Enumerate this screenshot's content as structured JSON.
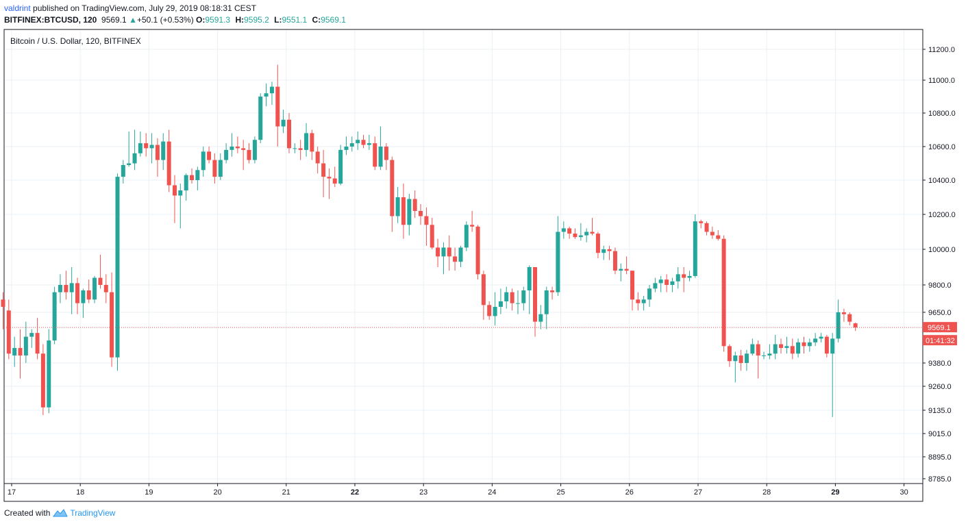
{
  "header": {
    "author": "valdrint",
    "published_text": "published on TradingView.com, July 29, 2019 08:18:31 CEST",
    "symbol": "BITFINEX:BTCUSD, 120",
    "last": "9569.1",
    "change": "+50.1 (+0.53%)",
    "open_label": "O:",
    "open_value": "9591.3",
    "high_label": "H:",
    "high_value": "9595.2",
    "low_label": "L:",
    "low_value": "9551.1",
    "close_label": "C:",
    "close_value": "9569.1"
  },
  "footer": {
    "created_with": "Created with",
    "brand": "TradingView"
  },
  "colors": {
    "up": "#26a69a",
    "down": "#ef5350",
    "grid": "#e9f1f5",
    "price_line": "#ef5350",
    "axis": "#131722"
  },
  "chart_data": {
    "type": "candlestick",
    "title": "Bitcoin / U.S. Dollar, 120, BITFINEX",
    "ylim": [
      8760,
      11320
    ],
    "y_ticks": [
      "11200.0",
      "11000.0",
      "10800.0",
      "10600.0",
      "10400.0",
      "10200.0",
      "10000.0",
      "9800.0",
      "9650.0",
      "9380.0",
      "9260.0",
      "9135.0",
      "9015.0",
      "8895.0",
      "8785.0"
    ],
    "x_ticks": [
      "17",
      "18",
      "19",
      "20",
      "21",
      "22",
      "23",
      "24",
      "25",
      "26",
      "27",
      "28",
      "29",
      "30"
    ],
    "x_ticks_bold": [
      "22",
      "29"
    ],
    "current_price": "9569.1",
    "countdown": "01:41:32",
    "series": [
      {
        "x": 16.875,
        "o": 9720,
        "h": 9760,
        "l": 9560,
        "c": 9680
      },
      {
        "x": 16.958,
        "o": 9660,
        "h": 9720,
        "l": 9400,
        "c": 9430
      },
      {
        "x": 17.042,
        "o": 9420,
        "h": 9520,
        "l": 9360,
        "c": 9460
      },
      {
        "x": 17.125,
        "o": 9460,
        "h": 9560,
        "l": 9300,
        "c": 9420
      },
      {
        "x": 17.208,
        "o": 9420,
        "h": 9600,
        "l": 9380,
        "c": 9520
      },
      {
        "x": 17.292,
        "o": 9520,
        "h": 9560,
        "l": 9460,
        "c": 9540
      },
      {
        "x": 17.375,
        "o": 9540,
        "h": 9620,
        "l": 9400,
        "c": 9430
      },
      {
        "x": 17.458,
        "o": 9430,
        "h": 9480,
        "l": 9110,
        "c": 9150
      },
      {
        "x": 17.542,
        "o": 9150,
        "h": 9560,
        "l": 9120,
        "c": 9500
      },
      {
        "x": 17.625,
        "o": 9500,
        "h": 9790,
        "l": 9480,
        "c": 9760
      },
      {
        "x": 17.708,
        "o": 9760,
        "h": 9860,
        "l": 9700,
        "c": 9800
      },
      {
        "x": 17.792,
        "o": 9800,
        "h": 9880,
        "l": 9720,
        "c": 9760
      },
      {
        "x": 17.875,
        "o": 9760,
        "h": 9900,
        "l": 9640,
        "c": 9810
      },
      {
        "x": 17.958,
        "o": 9810,
        "h": 9840,
        "l": 9640,
        "c": 9700
      },
      {
        "x": 18.042,
        "o": 9700,
        "h": 9780,
        "l": 9620,
        "c": 9770
      },
      {
        "x": 18.125,
        "o": 9770,
        "h": 9830,
        "l": 9700,
        "c": 9720
      },
      {
        "x": 18.208,
        "o": 9720,
        "h": 9850,
        "l": 9700,
        "c": 9840
      },
      {
        "x": 18.292,
        "o": 9840,
        "h": 9970,
        "l": 9780,
        "c": 9800
      },
      {
        "x": 18.375,
        "o": 9800,
        "h": 9860,
        "l": 9700,
        "c": 9760
      },
      {
        "x": 18.458,
        "o": 9760,
        "h": 9870,
        "l": 9360,
        "c": 9410
      },
      {
        "x": 18.542,
        "o": 9410,
        "h": 10440,
        "l": 9340,
        "c": 10420
      },
      {
        "x": 18.625,
        "o": 10420,
        "h": 10520,
        "l": 10380,
        "c": 10490
      },
      {
        "x": 18.708,
        "o": 10490,
        "h": 10690,
        "l": 10480,
        "c": 10500
      },
      {
        "x": 18.792,
        "o": 10500,
        "h": 10700,
        "l": 10460,
        "c": 10560
      },
      {
        "x": 18.875,
        "o": 10560,
        "h": 10690,
        "l": 10540,
        "c": 10620
      },
      {
        "x": 18.958,
        "o": 10620,
        "h": 10680,
        "l": 10540,
        "c": 10590
      },
      {
        "x": 19.042,
        "o": 10590,
        "h": 10680,
        "l": 10500,
        "c": 10610
      },
      {
        "x": 19.125,
        "o": 10610,
        "h": 10650,
        "l": 10420,
        "c": 10520
      },
      {
        "x": 19.208,
        "o": 10520,
        "h": 10680,
        "l": 10460,
        "c": 10630
      },
      {
        "x": 19.292,
        "o": 10630,
        "h": 10700,
        "l": 10330,
        "c": 10370
      },
      {
        "x": 19.375,
        "o": 10370,
        "h": 10430,
        "l": 10150,
        "c": 10310
      },
      {
        "x": 19.458,
        "o": 10310,
        "h": 10380,
        "l": 10120,
        "c": 10340
      },
      {
        "x": 19.542,
        "o": 10340,
        "h": 10440,
        "l": 10280,
        "c": 10430
      },
      {
        "x": 19.625,
        "o": 10430,
        "h": 10470,
        "l": 10380,
        "c": 10400
      },
      {
        "x": 19.708,
        "o": 10400,
        "h": 10480,
        "l": 10340,
        "c": 10460
      },
      {
        "x": 19.792,
        "o": 10460,
        "h": 10600,
        "l": 10420,
        "c": 10570
      },
      {
        "x": 19.875,
        "o": 10570,
        "h": 10600,
        "l": 10500,
        "c": 10520
      },
      {
        "x": 19.958,
        "o": 10520,
        "h": 10560,
        "l": 10380,
        "c": 10420
      },
      {
        "x": 20.042,
        "o": 10420,
        "h": 10560,
        "l": 10400,
        "c": 10520
      },
      {
        "x": 20.125,
        "o": 10520,
        "h": 10620,
        "l": 10500,
        "c": 10580
      },
      {
        "x": 20.208,
        "o": 10580,
        "h": 10680,
        "l": 10540,
        "c": 10600
      },
      {
        "x": 20.292,
        "o": 10600,
        "h": 10660,
        "l": 10560,
        "c": 10590
      },
      {
        "x": 20.375,
        "o": 10590,
        "h": 10640,
        "l": 10460,
        "c": 10580
      },
      {
        "x": 20.458,
        "o": 10580,
        "h": 10620,
        "l": 10500,
        "c": 10520
      },
      {
        "x": 20.542,
        "o": 10520,
        "h": 10660,
        "l": 10500,
        "c": 10640
      },
      {
        "x": 20.625,
        "o": 10640,
        "h": 10920,
        "l": 10620,
        "c": 10900
      },
      {
        "x": 20.708,
        "o": 10900,
        "h": 10980,
        "l": 10840,
        "c": 10920
      },
      {
        "x": 20.792,
        "o": 10920,
        "h": 10990,
        "l": 10850,
        "c": 10960
      },
      {
        "x": 20.875,
        "o": 10960,
        "h": 11100,
        "l": 10600,
        "c": 10720
      },
      {
        "x": 20.958,
        "o": 10720,
        "h": 10820,
        "l": 10680,
        "c": 10760
      },
      {
        "x": 21.042,
        "o": 10760,
        "h": 10800,
        "l": 10560,
        "c": 10590
      },
      {
        "x": 21.125,
        "o": 10590,
        "h": 10620,
        "l": 10560,
        "c": 10590
      },
      {
        "x": 21.208,
        "o": 10590,
        "h": 10640,
        "l": 10520,
        "c": 10580
      },
      {
        "x": 21.292,
        "o": 10580,
        "h": 10740,
        "l": 10540,
        "c": 10680
      },
      {
        "x": 21.375,
        "o": 10680,
        "h": 10700,
        "l": 10520,
        "c": 10570
      },
      {
        "x": 21.458,
        "o": 10570,
        "h": 10600,
        "l": 10440,
        "c": 10500
      },
      {
        "x": 21.542,
        "o": 10500,
        "h": 10580,
        "l": 10300,
        "c": 10420
      },
      {
        "x": 21.625,
        "o": 10420,
        "h": 10470,
        "l": 10290,
        "c": 10410
      },
      {
        "x": 21.708,
        "o": 10410,
        "h": 10480,
        "l": 10360,
        "c": 10380
      },
      {
        "x": 21.792,
        "o": 10380,
        "h": 10610,
        "l": 10370,
        "c": 10580
      },
      {
        "x": 21.875,
        "o": 10580,
        "h": 10660,
        "l": 10550,
        "c": 10600
      },
      {
        "x": 21.958,
        "o": 10600,
        "h": 10660,
        "l": 10570,
        "c": 10620
      },
      {
        "x": 22.042,
        "o": 10620,
        "h": 10690,
        "l": 10580,
        "c": 10640
      },
      {
        "x": 22.125,
        "o": 10640,
        "h": 10670,
        "l": 10590,
        "c": 10610
      },
      {
        "x": 22.208,
        "o": 10610,
        "h": 10670,
        "l": 10580,
        "c": 10620
      },
      {
        "x": 22.292,
        "o": 10620,
        "h": 10660,
        "l": 10460,
        "c": 10480
      },
      {
        "x": 22.375,
        "o": 10480,
        "h": 10720,
        "l": 10460,
        "c": 10600
      },
      {
        "x": 22.458,
        "o": 10600,
        "h": 10620,
        "l": 10460,
        "c": 10520
      },
      {
        "x": 22.542,
        "o": 10520,
        "h": 10540,
        "l": 10100,
        "c": 10190
      },
      {
        "x": 22.625,
        "o": 10190,
        "h": 10360,
        "l": 10150,
        "c": 10300
      },
      {
        "x": 22.708,
        "o": 10300,
        "h": 10380,
        "l": 10060,
        "c": 10140
      },
      {
        "x": 22.792,
        "o": 10140,
        "h": 10320,
        "l": 10080,
        "c": 10290
      },
      {
        "x": 22.875,
        "o": 10290,
        "h": 10340,
        "l": 10180,
        "c": 10220
      },
      {
        "x": 22.958,
        "o": 10220,
        "h": 10260,
        "l": 10140,
        "c": 10190
      },
      {
        "x": 23.042,
        "o": 10190,
        "h": 10240,
        "l": 10020,
        "c": 10140
      },
      {
        "x": 23.125,
        "o": 10140,
        "h": 10180,
        "l": 10000,
        "c": 10010
      },
      {
        "x": 23.208,
        "o": 10010,
        "h": 10060,
        "l": 9900,
        "c": 9960
      },
      {
        "x": 23.292,
        "o": 9960,
        "h": 10040,
        "l": 9860,
        "c": 10010
      },
      {
        "x": 23.375,
        "o": 10010,
        "h": 10080,
        "l": 9880,
        "c": 9960
      },
      {
        "x": 23.458,
        "o": 9960,
        "h": 10010,
        "l": 9880,
        "c": 9930
      },
      {
        "x": 23.542,
        "o": 9930,
        "h": 10020,
        "l": 9900,
        "c": 10010
      },
      {
        "x": 23.625,
        "o": 10010,
        "h": 10160,
        "l": 9990,
        "c": 10140
      },
      {
        "x": 23.708,
        "o": 10140,
        "h": 10220,
        "l": 10100,
        "c": 10130
      },
      {
        "x": 23.792,
        "o": 10130,
        "h": 10140,
        "l": 9830,
        "c": 9860
      },
      {
        "x": 23.875,
        "o": 9860,
        "h": 9880,
        "l": 9610,
        "c": 9690
      },
      {
        "x": 23.958,
        "o": 9690,
        "h": 9710,
        "l": 9610,
        "c": 9630
      },
      {
        "x": 24.042,
        "o": 9630,
        "h": 9760,
        "l": 9580,
        "c": 9680
      },
      {
        "x": 24.125,
        "o": 9680,
        "h": 9780,
        "l": 9640,
        "c": 9710
      },
      {
        "x": 24.208,
        "o": 9710,
        "h": 9790,
        "l": 9670,
        "c": 9760
      },
      {
        "x": 24.292,
        "o": 9760,
        "h": 9780,
        "l": 9660,
        "c": 9700
      },
      {
        "x": 24.375,
        "o": 9700,
        "h": 9770,
        "l": 9640,
        "c": 9700
      },
      {
        "x": 24.458,
        "o": 9700,
        "h": 9790,
        "l": 9660,
        "c": 9770
      },
      {
        "x": 24.542,
        "o": 9770,
        "h": 9910,
        "l": 9640,
        "c": 9900
      },
      {
        "x": 24.625,
        "o": 9900,
        "h": 9900,
        "l": 9520,
        "c": 9600
      },
      {
        "x": 24.708,
        "o": 9600,
        "h": 9690,
        "l": 9560,
        "c": 9640
      },
      {
        "x": 24.792,
        "o": 9640,
        "h": 9790,
        "l": 9560,
        "c": 9770
      },
      {
        "x": 24.875,
        "o": 9770,
        "h": 9790,
        "l": 9720,
        "c": 9760
      },
      {
        "x": 24.958,
        "o": 9760,
        "h": 10190,
        "l": 9740,
        "c": 10100
      },
      {
        "x": 25.042,
        "o": 10100,
        "h": 10160,
        "l": 10060,
        "c": 10120
      },
      {
        "x": 25.125,
        "o": 10120,
        "h": 10130,
        "l": 10060,
        "c": 10090
      },
      {
        "x": 25.208,
        "o": 10090,
        "h": 10120,
        "l": 10060,
        "c": 10070
      },
      {
        "x": 25.292,
        "o": 10070,
        "h": 10150,
        "l": 10050,
        "c": 10080
      },
      {
        "x": 25.375,
        "o": 10080,
        "h": 10120,
        "l": 10040,
        "c": 10100
      },
      {
        "x": 25.458,
        "o": 10100,
        "h": 10180,
        "l": 10080,
        "c": 10090
      },
      {
        "x": 25.542,
        "o": 10090,
        "h": 10100,
        "l": 9950,
        "c": 9980
      },
      {
        "x": 25.625,
        "o": 9980,
        "h": 10020,
        "l": 9940,
        "c": 10000
      },
      {
        "x": 25.708,
        "o": 10000,
        "h": 10020,
        "l": 9940,
        "c": 9990
      },
      {
        "x": 25.792,
        "o": 9990,
        "h": 10010,
        "l": 9860,
        "c": 9880
      },
      {
        "x": 25.875,
        "o": 9880,
        "h": 9920,
        "l": 9820,
        "c": 9890
      },
      {
        "x": 25.958,
        "o": 9890,
        "h": 9960,
        "l": 9860,
        "c": 9880
      },
      {
        "x": 26.042,
        "o": 9880,
        "h": 9880,
        "l": 9660,
        "c": 9720
      },
      {
        "x": 26.125,
        "o": 9720,
        "h": 9760,
        "l": 9660,
        "c": 9700
      },
      {
        "x": 26.208,
        "o": 9700,
        "h": 9740,
        "l": 9660,
        "c": 9720
      },
      {
        "x": 26.292,
        "o": 9720,
        "h": 9800,
        "l": 9680,
        "c": 9780
      },
      {
        "x": 26.375,
        "o": 9780,
        "h": 9840,
        "l": 9760,
        "c": 9810
      },
      {
        "x": 26.458,
        "o": 9810,
        "h": 9850,
        "l": 9760,
        "c": 9830
      },
      {
        "x": 26.542,
        "o": 9830,
        "h": 9860,
        "l": 9760,
        "c": 9800
      },
      {
        "x": 26.625,
        "o": 9800,
        "h": 9840,
        "l": 9760,
        "c": 9820
      },
      {
        "x": 26.708,
        "o": 9820,
        "h": 9900,
        "l": 9780,
        "c": 9860
      },
      {
        "x": 26.792,
        "o": 9860,
        "h": 9900,
        "l": 9760,
        "c": 9840
      },
      {
        "x": 26.875,
        "o": 9840,
        "h": 9880,
        "l": 9820,
        "c": 9850
      },
      {
        "x": 26.958,
        "o": 9850,
        "h": 10200,
        "l": 9840,
        "c": 10160
      },
      {
        "x": 27.042,
        "o": 10160,
        "h": 10170,
        "l": 10120,
        "c": 10150
      },
      {
        "x": 27.125,
        "o": 10150,
        "h": 10160,
        "l": 10080,
        "c": 10100
      },
      {
        "x": 27.208,
        "o": 10100,
        "h": 10130,
        "l": 10060,
        "c": 10080
      },
      {
        "x": 27.292,
        "o": 10080,
        "h": 10110,
        "l": 10050,
        "c": 10060
      },
      {
        "x": 27.375,
        "o": 10060,
        "h": 10080,
        "l": 9440,
        "c": 9470
      },
      {
        "x": 27.458,
        "o": 9470,
        "h": 9480,
        "l": 9360,
        "c": 9390
      },
      {
        "x": 27.542,
        "o": 9390,
        "h": 9440,
        "l": 9280,
        "c": 9420
      },
      {
        "x": 27.625,
        "o": 9420,
        "h": 9450,
        "l": 9340,
        "c": 9380
      },
      {
        "x": 27.708,
        "o": 9380,
        "h": 9450,
        "l": 9340,
        "c": 9430
      },
      {
        "x": 27.792,
        "o": 9430,
        "h": 9510,
        "l": 9420,
        "c": 9480
      },
      {
        "x": 27.875,
        "o": 9480,
        "h": 9500,
        "l": 9300,
        "c": 9420
      },
      {
        "x": 27.958,
        "o": 9420,
        "h": 9440,
        "l": 9400,
        "c": 9420
      },
      {
        "x": 28.042,
        "o": 9420,
        "h": 9480,
        "l": 9400,
        "c": 9430
      },
      {
        "x": 28.125,
        "o": 9430,
        "h": 9530,
        "l": 9400,
        "c": 9480
      },
      {
        "x": 28.208,
        "o": 9480,
        "h": 9510,
        "l": 9430,
        "c": 9460
      },
      {
        "x": 28.292,
        "o": 9460,
        "h": 9520,
        "l": 9430,
        "c": 9470
      },
      {
        "x": 28.375,
        "o": 9470,
        "h": 9510,
        "l": 9400,
        "c": 9430
      },
      {
        "x": 28.458,
        "o": 9430,
        "h": 9510,
        "l": 9410,
        "c": 9490
      },
      {
        "x": 28.542,
        "o": 9490,
        "h": 9520,
        "l": 9430,
        "c": 9470
      },
      {
        "x": 28.625,
        "o": 9470,
        "h": 9510,
        "l": 9440,
        "c": 9490
      },
      {
        "x": 28.708,
        "o": 9490,
        "h": 9540,
        "l": 9470,
        "c": 9510
      },
      {
        "x": 28.792,
        "o": 9510,
        "h": 9540,
        "l": 9490,
        "c": 9520
      },
      {
        "x": 28.875,
        "o": 9520,
        "h": 9530,
        "l": 9410,
        "c": 9430
      },
      {
        "x": 28.958,
        "o": 9430,
        "h": 9540,
        "l": 9100,
        "c": 9510
      },
      {
        "x": 29.042,
        "o": 9510,
        "h": 9720,
        "l": 9490,
        "c": 9650
      },
      {
        "x": 29.125,
        "o": 9650,
        "h": 9670,
        "l": 9600,
        "c": 9640
      },
      {
        "x": 29.208,
        "o": 9640,
        "h": 9650,
        "l": 9580,
        "c": 9600
      },
      {
        "x": 29.292,
        "o": 9591.3,
        "h": 9595.2,
        "l": 9551.1,
        "c": 9569.1
      }
    ]
  }
}
